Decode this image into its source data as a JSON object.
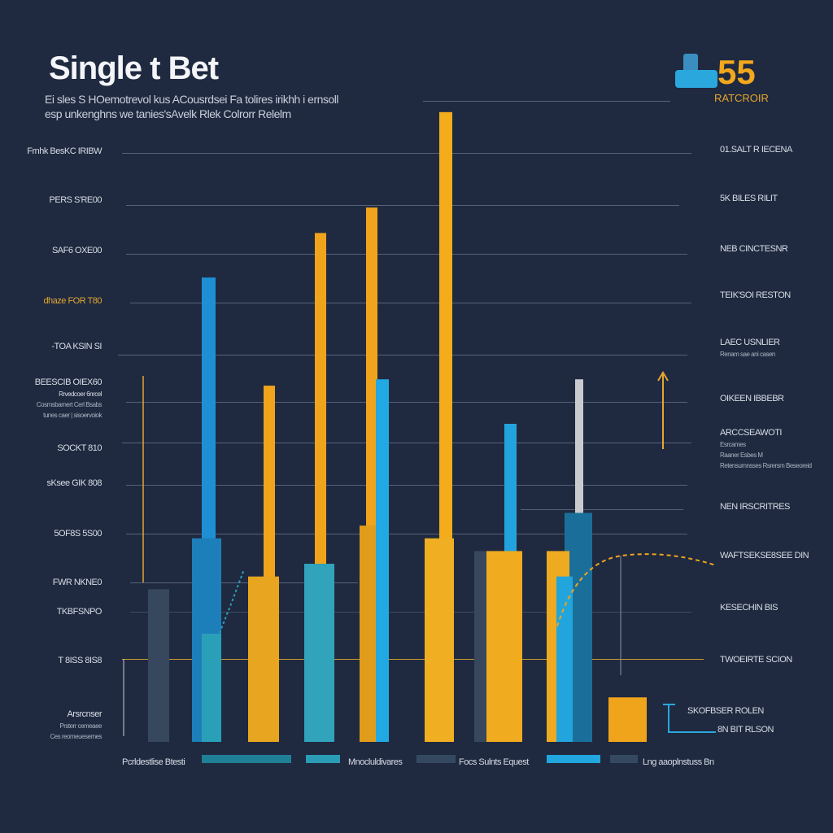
{
  "header": {
    "title": "Single t Bet",
    "subtitle_line1": "Ei sles S HOemotrevol kus ACousrdsei Fa tolires irikhh i ernsoll",
    "subtitle_line2": "esp unkenghns we tanies'sAvelk Rlek Colrorr Relelm"
  },
  "logo": {
    "number": "55",
    "caption": "RATCROIR"
  },
  "left_labels": [
    "Frnhk BesKC IRIBW",
    "PERS S'RE00",
    "SAF6 OXE00",
    "dhaze FOR T80",
    "-TOA KSIN SI",
    "BEESCIB OIEX60",
    "Rrvedcoer 6nrcel",
    "Cosmsbarnert Cerl Bsabs",
    "tunes caer | sisoervoiok",
    "SOCKT 810",
    "sKsee GIK 808",
    "5OF8S 5S00",
    "FWR NKNE0",
    "TKBFSNPO",
    "T 8ISS 8IS8",
    "Arsrcnser",
    "Prsterr cemeaee",
    "Ces reomeuesernes"
  ],
  "right_labels": [
    "01.SALT R IECENA",
    "5K BILES RILIT",
    "NEB CINCTESNR",
    "TEIK'SOI RESTON",
    "LAEC USNLIER",
    "Renam sae ani casen",
    "OIKEEN IBBEBR",
    "ARCCSEAWOTI",
    "Esrcames",
    "Raaner Esbes M",
    "Retensumnsses Rsrersm Beseoreid",
    "NEN IRSCRITRES",
    "WAFTSEKSE8SEE DIN",
    "KESECHIN BIS",
    "TWOEIRTE SCION",
    "SKOFBSER ROLEN",
    "8N BIT RLSON"
  ],
  "legend": [
    {
      "label": "Pcrldestlise Btesti",
      "color": "#1f7f96"
    },
    {
      "label": "Mnocluldivares",
      "color": "#2a9cb5"
    },
    {
      "label": "Focs Sulnts Equest",
      "color": "#34495f"
    },
    {
      "label": "Lng aaoplnstuss Bn",
      "color": "#22a6e0"
    }
  ],
  "chart_data": {
    "type": "bar",
    "title": "Single t Bet",
    "xlabel": "",
    "ylabel": "",
    "ylim": [
      0,
      100
    ],
    "grid": true,
    "legend_position": "bottom",
    "bars": [
      {
        "group": 0,
        "value": 24,
        "color": "#36475e"
      },
      {
        "group": 1,
        "value": 73,
        "color": "#1f8fd4"
      },
      {
        "group": 1,
        "value": 32,
        "color": "#1c7fba"
      },
      {
        "group": 1,
        "value": 17,
        "color": "#2aa0b8"
      },
      {
        "group": 2,
        "value": 56,
        "color": "#f0a41c"
      },
      {
        "group": 2,
        "value": 26,
        "color": "#e8a520"
      },
      {
        "group": 3,
        "value": 80,
        "color": "#f0a41c"
      },
      {
        "group": 3,
        "value": 28,
        "color": "#31a3bb"
      },
      {
        "group": 4,
        "value": 84,
        "color": "#f0a41c"
      },
      {
        "group": 4,
        "value": 34,
        "color": "#e09c1b"
      },
      {
        "group": 4,
        "value": 57,
        "color": "#22a9e3"
      },
      {
        "group": 5,
        "value": 99,
        "color": "#f2ac1c"
      },
      {
        "group": 5,
        "value": 32,
        "color": "#f0ae22"
      },
      {
        "group": 6,
        "value": 30,
        "color": "#36475e"
      },
      {
        "group": 6,
        "value": 50,
        "color": "#23a3dd"
      },
      {
        "group": 6,
        "value": 30,
        "color": "#f0ab1f"
      },
      {
        "group": 7,
        "value": 57,
        "color": "#c9cbcf"
      },
      {
        "group": 7,
        "value": 36,
        "color": "#1a6f9a"
      },
      {
        "group": 7,
        "value": 30,
        "color": "#eeaa20"
      },
      {
        "group": 7,
        "value": 26,
        "color": "#21a5dc"
      },
      {
        "group": 8,
        "value": 7,
        "color": "#f0a41c"
      }
    ]
  }
}
